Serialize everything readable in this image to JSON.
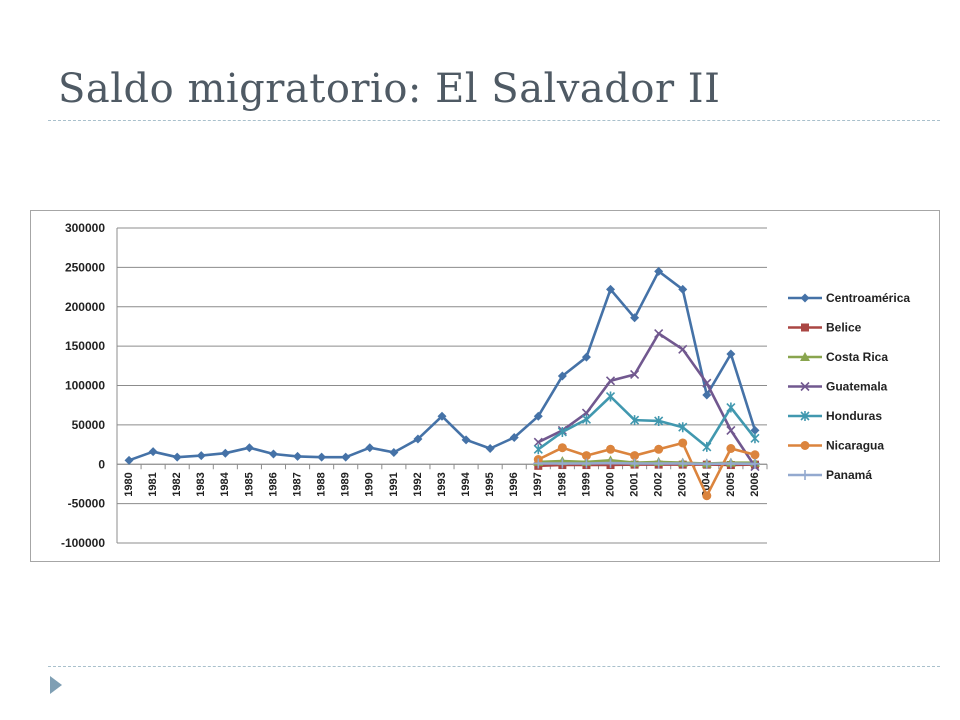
{
  "slide": {
    "title": "Saldo migratorio: El Salvador II"
  },
  "chart_data": {
    "type": "line",
    "title": "",
    "xlabel": "",
    "ylabel": "",
    "ylim": [
      -100000,
      300000
    ],
    "ystep": 50000,
    "grid": true,
    "legend_position": "right",
    "categories": [
      "1980",
      "1981",
      "1982",
      "1983",
      "1984",
      "1985",
      "1986",
      "1987",
      "1988",
      "1989",
      "1990",
      "1991",
      "1992",
      "1993",
      "1994",
      "1995",
      "1996",
      "1997",
      "1998",
      "1999",
      "2000",
      "2001",
      "2002",
      "2003",
      "2004",
      "2005",
      "2006"
    ],
    "yticks": [
      "300000",
      "250000",
      "200000",
      "150000",
      "100000",
      "50000",
      "0",
      "-50000",
      "-100000"
    ],
    "series": [
      {
        "name": "Centroamérica",
        "color": "#4572a7",
        "marker": "diamond",
        "values": [
          5000,
          16000,
          9000,
          11000,
          14000,
          21000,
          13000,
          10000,
          9000,
          9000,
          21000,
          15000,
          32000,
          61000,
          31000,
          20000,
          34000,
          61000,
          112000,
          136000,
          222000,
          186000,
          245000,
          222000,
          88000,
          140000,
          43000
        ]
      },
      {
        "name": "Belice",
        "color": "#aa4643",
        "marker": "square",
        "values": [
          null,
          null,
          null,
          null,
          null,
          null,
          null,
          null,
          null,
          null,
          null,
          null,
          null,
          null,
          null,
          null,
          null,
          -2000,
          -1000,
          -1000,
          -1000,
          -500,
          -500,
          -500,
          -500,
          -1000,
          -500
        ]
      },
      {
        "name": "Costa Rica",
        "color": "#89a54e",
        "marker": "triangle",
        "values": [
          null,
          null,
          null,
          null,
          null,
          null,
          null,
          null,
          null,
          null,
          null,
          null,
          null,
          null,
          null,
          null,
          null,
          3000,
          4000,
          3000,
          5000,
          2000,
          3000,
          2000,
          1000,
          2000,
          2000
        ]
      },
      {
        "name": "Guatemala",
        "color": "#71588f",
        "marker": "x",
        "values": [
          null,
          null,
          null,
          null,
          null,
          null,
          null,
          null,
          null,
          null,
          null,
          null,
          null,
          null,
          null,
          null,
          null,
          28000,
          43000,
          65000,
          106000,
          114000,
          166000,
          146000,
          103000,
          43000,
          -3000
        ]
      },
      {
        "name": "Honduras",
        "color": "#4198af",
        "marker": "star",
        "values": [
          null,
          null,
          null,
          null,
          null,
          null,
          null,
          null,
          null,
          null,
          null,
          null,
          null,
          null,
          null,
          null,
          null,
          19000,
          41000,
          57000,
          86000,
          56000,
          55000,
          47000,
          22000,
          72000,
          33000
        ]
      },
      {
        "name": "Nicaragua",
        "color": "#db843d",
        "marker": "circle",
        "values": [
          null,
          null,
          null,
          null,
          null,
          null,
          null,
          null,
          null,
          null,
          null,
          null,
          null,
          null,
          null,
          null,
          null,
          6000,
          21000,
          11000,
          19000,
          11000,
          19000,
          27000,
          -40000,
          20000,
          12000
        ]
      },
      {
        "name": "Panamá",
        "color": "#93a9cf",
        "marker": "plus",
        "values": [
          null,
          null,
          null,
          null,
          null,
          null,
          null,
          null,
          null,
          null,
          null,
          null,
          null,
          null,
          null,
          null,
          null,
          1000,
          1000,
          1000,
          1500,
          1000,
          1000,
          1000,
          500,
          1000,
          500
        ]
      }
    ]
  }
}
